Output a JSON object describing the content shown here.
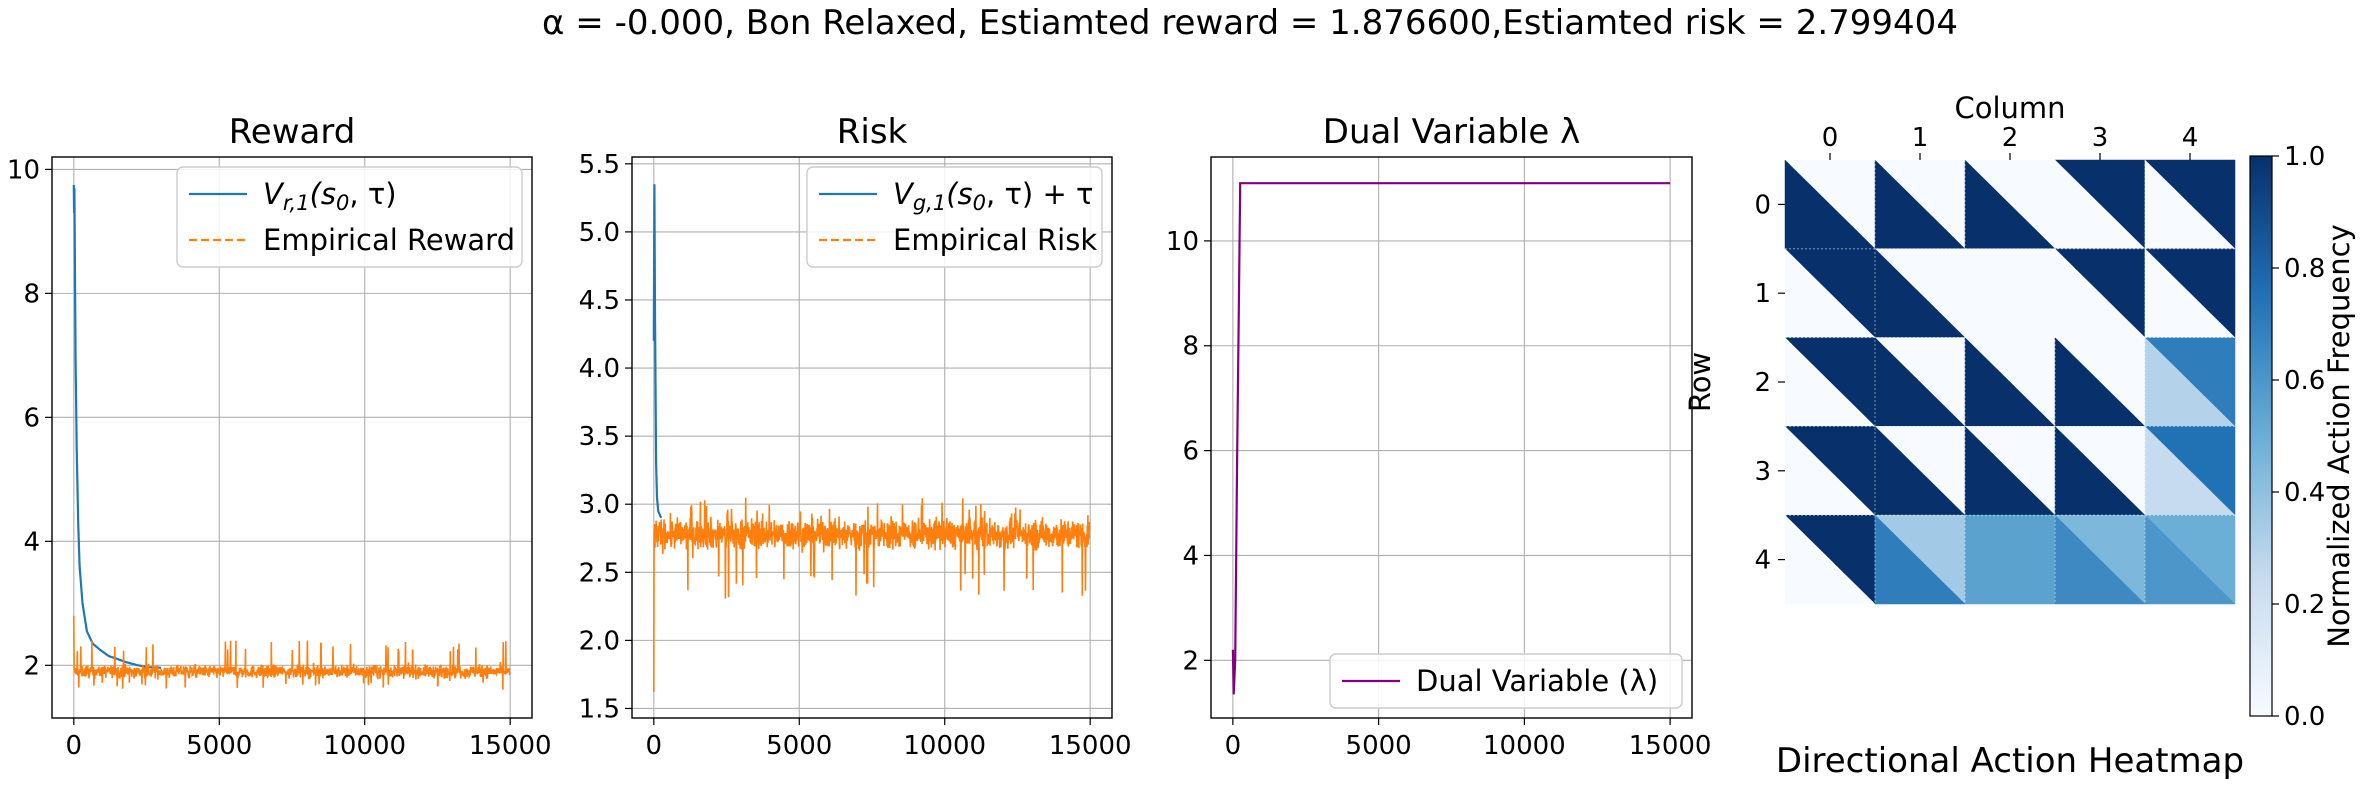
{
  "suptitle": "α = -0.000, Bon Relaxed, Estiamted reward = 1.876600,Estiamted risk = 2.799404",
  "chart_data": [
    {
      "type": "line",
      "title": "Reward",
      "xlim": [
        -750,
        15750
      ],
      "ylim": [
        1.15,
        10.2
      ],
      "xticks": [
        0,
        5000,
        10000,
        15000
      ],
      "yticks": [
        2,
        4,
        6,
        8,
        10
      ],
      "grid": true,
      "legend_placement": "upper right",
      "series": [
        {
          "name": "V_{r,1}(s_0, τ)",
          "color": "#1f77b4",
          "style": "solid",
          "points": [
            [
              0,
              9.75
            ],
            [
              10,
              9.3
            ],
            [
              20,
              9.7
            ],
            [
              40,
              8.2
            ],
            [
              60,
              6.9
            ],
            [
              100,
              5.5
            ],
            [
              150,
              4.3
            ],
            [
              200,
              3.6
            ],
            [
              300,
              3.0
            ],
            [
              450,
              2.55
            ],
            [
              650,
              2.35
            ],
            [
              900,
              2.25
            ],
            [
              1200,
              2.15
            ],
            [
              1500,
              2.1
            ],
            [
              1800,
              2.05
            ],
            [
              2200,
              2.0
            ],
            [
              2600,
              1.97
            ],
            [
              3000,
              1.96
            ]
          ]
        },
        {
          "name": "Empirical Reward",
          "color": "#ff7f0e",
          "style": "dashed",
          "noise": {
            "x_start": 0,
            "x_end": 15000,
            "mean": 1.9,
            "spread": 0.18,
            "spike_max": 2.4,
            "spike_min": 1.6,
            "initial_value": 2.8
          }
        }
      ]
    },
    {
      "type": "line",
      "title": "Risk",
      "xlim": [
        -750,
        15750
      ],
      "ylim": [
        1.43,
        5.55
      ],
      "xticks": [
        0,
        5000,
        10000,
        15000
      ],
      "yticks": [
        1.5,
        2.0,
        2.5,
        3.0,
        3.5,
        4.0,
        4.5,
        5.0,
        5.5
      ],
      "grid": true,
      "legend_placement": "upper right",
      "series": [
        {
          "name": "V_{g,1}(s_0, τ) + τ",
          "color": "#1f77b4",
          "style": "solid",
          "points": [
            [
              0,
              4.2
            ],
            [
              20,
              5.35
            ],
            [
              40,
              4.4
            ],
            [
              60,
              3.8
            ],
            [
              80,
              3.3
            ],
            [
              110,
              3.05
            ],
            [
              150,
              2.95
            ],
            [
              250,
              2.9
            ]
          ]
        },
        {
          "name": "Empirical Risk",
          "color": "#ff7f0e",
          "style": "dashed",
          "noise": {
            "x_start": 0,
            "x_end": 15000,
            "mean": 2.78,
            "spread": 0.2,
            "spike_max": 3.05,
            "spike_min": 2.3,
            "initial_value": 1.62
          }
        }
      ]
    },
    {
      "type": "line",
      "title": "Dual Variable λ",
      "xlim": [
        -750,
        15750
      ],
      "ylim": [
        0.9,
        11.6
      ],
      "xticks": [
        0,
        5000,
        10000,
        15000
      ],
      "yticks": [
        2,
        4,
        6,
        8,
        10
      ],
      "grid": true,
      "legend_placement": "lower right",
      "series": [
        {
          "name": "Dual Variable (λ)",
          "color": "#800080",
          "style": "solid",
          "points": [
            [
              0,
              2.2
            ],
            [
              30,
              1.35
            ],
            [
              80,
              2.0
            ],
            [
              150,
              6.0
            ],
            [
              200,
              8.5
            ],
            [
              250,
              11.1
            ],
            [
              15000,
              11.1
            ]
          ]
        }
      ]
    },
    {
      "type": "heatmap",
      "title": "Directional Action Heatmap",
      "xlabel": "Column",
      "ylabel": "Row",
      "columns": [
        0,
        1,
        2,
        3,
        4
      ],
      "rows": [
        0,
        1,
        2,
        3,
        4
      ],
      "colorbar_label": "Normalized Action Frequency",
      "colorbar_ticks": [
        0.0,
        0.2,
        0.4,
        0.6,
        0.8,
        1.0
      ],
      "colormap": "Blues",
      "cells_upper_lower": [
        [
          [
            0.0,
            1.0
          ],
          [
            0.0,
            1.0
          ],
          [
            0.0,
            1.0
          ],
          [
            1.0,
            0.0
          ],
          [
            1.0,
            0.0
          ]
        ],
        [
          [
            1.0,
            0.0
          ],
          [
            0.0,
            1.0
          ],
          [
            0.0,
            0.0
          ],
          [
            1.0,
            0.0
          ],
          [
            1.0,
            0.0
          ]
        ],
        [
          [
            1.0,
            0.0
          ],
          [
            0.0,
            1.0
          ],
          [
            0.0,
            1.0
          ],
          [
            0.0,
            1.0
          ],
          [
            0.7,
            0.3
          ]
        ],
        [
          [
            1.0,
            0.0
          ],
          [
            0.0,
            1.0
          ],
          [
            0.0,
            1.0
          ],
          [
            0.0,
            1.0
          ],
          [
            0.75,
            0.25
          ]
        ],
        [
          [
            1.0,
            0.0
          ],
          [
            0.35,
            0.7
          ],
          [
            0.55,
            0.55
          ],
          [
            0.45,
            0.65
          ],
          [
            0.5,
            0.6
          ]
        ]
      ]
    }
  ]
}
